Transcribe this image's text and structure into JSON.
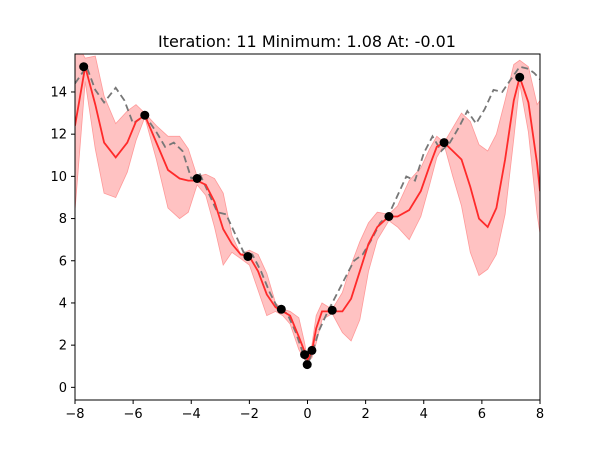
{
  "chart_data": {
    "type": "line",
    "title": "Iteration: 11   Minimum: 1.08   At: -0.01",
    "xlim": [
      -8,
      8
    ],
    "ylim": [
      -0.6,
      15.8
    ],
    "xticks": [
      -8,
      -6,
      -4,
      -2,
      0,
      2,
      4,
      6,
      8
    ],
    "yticks": [
      0,
      2,
      4,
      6,
      8,
      10,
      12,
      14
    ],
    "xtick_labels": [
      "−8",
      "−6",
      "−4",
      "−2",
      "0",
      "2",
      "4",
      "6",
      "8"
    ],
    "ytick_labels": [
      "0",
      "2",
      "4",
      "6",
      "8",
      "10",
      "12",
      "14"
    ],
    "grid": false,
    "series": [
      {
        "kind": "true-function",
        "style": "dashed",
        "color": "#777777",
        "x": [
          -8.0,
          -7.6,
          -7.3,
          -7.0,
          -6.6,
          -6.3,
          -6.0,
          -5.6,
          -5.2,
          -4.9,
          -4.6,
          -4.3,
          -4.0,
          -3.7,
          -3.4,
          -3.1,
          -2.8,
          -2.5,
          -2.2,
          -1.9,
          -1.6,
          -1.3,
          -1.0,
          -0.7,
          -0.4,
          -0.15,
          0.0,
          0.15,
          0.4,
          0.7,
          1.0,
          1.3,
          1.6,
          1.9,
          2.2,
          2.5,
          2.8,
          3.1,
          3.4,
          3.7,
          4.0,
          4.3,
          4.6,
          4.9,
          5.2,
          5.5,
          5.8,
          6.1,
          6.4,
          6.7,
          7.0,
          7.3,
          7.6,
          7.8,
          8.0
        ],
        "y": [
          14.4,
          15.2,
          14.1,
          13.5,
          14.2,
          13.6,
          12.5,
          12.9,
          12.1,
          11.4,
          11.6,
          11.2,
          9.9,
          10.1,
          9.2,
          8.3,
          8.2,
          7.3,
          6.4,
          6.3,
          5.5,
          4.5,
          3.7,
          3.5,
          2.6,
          1.6,
          1.08,
          1.6,
          2.7,
          3.6,
          4.4,
          5.2,
          6.0,
          6.3,
          7.0,
          7.8,
          8.2,
          9.1,
          10.0,
          9.8,
          11.1,
          11.9,
          11.2,
          11.6,
          12.3,
          13.1,
          12.5,
          13.2,
          14.1,
          14.0,
          14.6,
          15.2,
          15.1,
          14.9,
          14.6
        ]
      },
      {
        "kind": "predicted-mean",
        "style": "solid",
        "color": "#ff2a2a",
        "x": [
          -8.0,
          -7.65,
          -7.3,
          -7.0,
          -6.6,
          -6.2,
          -5.9,
          -5.6,
          -5.2,
          -4.8,
          -4.4,
          -4.1,
          -3.8,
          -3.5,
          -3.2,
          -2.9,
          -2.6,
          -2.3,
          -2.0,
          -1.7,
          -1.4,
          -1.1,
          -0.85,
          -0.6,
          -0.3,
          -0.1,
          0.0,
          0.15,
          0.3,
          0.5,
          0.85,
          1.2,
          1.5,
          1.8,
          2.1,
          2.4,
          2.8,
          3.1,
          3.5,
          3.9,
          4.2,
          4.45,
          4.7,
          5.0,
          5.3,
          5.6,
          5.9,
          6.2,
          6.5,
          6.8,
          7.1,
          7.3,
          7.6,
          7.9,
          8.0
        ],
        "y": [
          12.4,
          15.2,
          13.4,
          11.6,
          10.9,
          11.6,
          12.6,
          12.9,
          11.6,
          10.3,
          9.9,
          9.8,
          9.8,
          9.6,
          8.8,
          7.5,
          6.8,
          6.3,
          6.2,
          5.5,
          4.4,
          3.8,
          3.6,
          3.4,
          2.4,
          1.7,
          1.3,
          1.7,
          2.8,
          3.6,
          3.6,
          3.6,
          4.2,
          5.5,
          6.8,
          7.6,
          8.1,
          8.1,
          8.4,
          9.3,
          10.5,
          11.4,
          11.6,
          11.2,
          10.8,
          9.5,
          8.0,
          7.6,
          8.5,
          10.8,
          13.6,
          14.7,
          13.5,
          10.6,
          9.3
        ],
        "upper": [
          16.4,
          15.6,
          15.7,
          13.8,
          12.5,
          13.1,
          13.4,
          13.0,
          12.4,
          11.9,
          11.9,
          11.3,
          10.0,
          10.1,
          9.9,
          9.2,
          7.2,
          6.3,
          6.5,
          6.3,
          5.4,
          4.0,
          3.7,
          3.6,
          3.3,
          2.1,
          1.3,
          2.0,
          3.4,
          4.0,
          3.7,
          4.5,
          5.8,
          6.9,
          7.8,
          8.3,
          8.2,
          8.6,
          9.8,
          10.4,
          11.3,
          11.9,
          11.6,
          12.3,
          13.0,
          12.6,
          11.5,
          11.2,
          12.0,
          13.6,
          15.3,
          15.5,
          15.2,
          13.4,
          13.6
        ],
        "lower": [
          8.4,
          14.5,
          11.3,
          9.2,
          9.0,
          10.2,
          11.7,
          12.8,
          10.8,
          8.5,
          8.0,
          8.3,
          9.6,
          9.1,
          7.6,
          5.8,
          6.4,
          6.1,
          5.8,
          4.6,
          3.4,
          3.6,
          3.4,
          3.0,
          1.8,
          1.3,
          1.2,
          1.4,
          2.1,
          3.2,
          3.5,
          2.6,
          2.2,
          3.2,
          5.5,
          7.0,
          7.9,
          7.6,
          7.0,
          8.1,
          9.6,
          10.9,
          11.5,
          10.0,
          8.6,
          6.4,
          5.3,
          5.6,
          6.3,
          8.2,
          11.8,
          14.4,
          12.1,
          8.2,
          7.3
        ]
      }
    ],
    "samples": {
      "color": "#000000",
      "x": [
        -7.7,
        -5.6,
        -3.8,
        -2.05,
        -0.9,
        -0.1,
        -0.01,
        0.15,
        0.85,
        2.8,
        4.7,
        7.3
      ],
      "y": [
        15.2,
        12.9,
        9.9,
        6.2,
        3.7,
        1.55,
        1.08,
        1.75,
        3.65,
        8.1,
        11.6,
        14.7
      ]
    },
    "band_color": "#ff9999"
  }
}
